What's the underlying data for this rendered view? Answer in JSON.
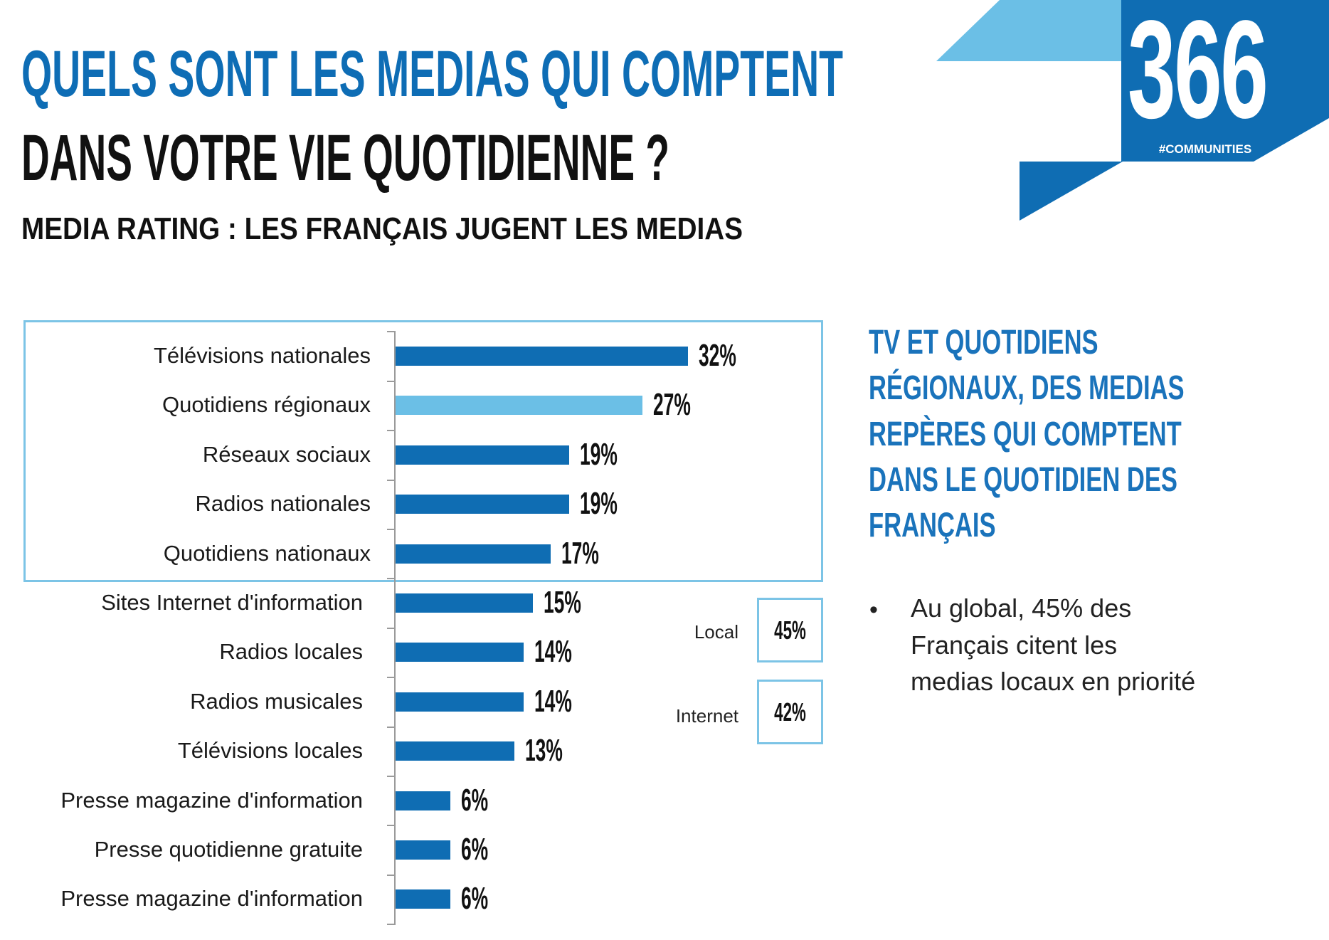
{
  "title": {
    "line1": "QUELS SONT LES MEDIAS QUI COMPTENT",
    "line2": "DANS VOTRE VIE QUOTIDIENNE ?",
    "subtitle": "MEDIA RATING : LES FRANÇAIS JUGENT LES MEDIAS"
  },
  "logo": {
    "number": "366",
    "tag": "#COMMUNITIES"
  },
  "colors": {
    "primary": "#0f6db3",
    "highlight": "#6bbfe6",
    "box_border": "#7cc4e6",
    "title_blue": "#0e6db5"
  },
  "chart_data": {
    "type": "bar",
    "orientation": "horizontal",
    "categories": [
      "Télévisions nationales",
      "Quotidiens régionaux",
      "Réseaux sociaux",
      "Radios nationales",
      "Quotidiens nationaux",
      "Sites Internet d'information",
      "Radios locales",
      "Radios musicales",
      "Télévisions locales",
      "Presse magazine d'information",
      "Presse quotidienne gratuite",
      "Presse magazine d'information"
    ],
    "values": [
      32,
      27,
      19,
      19,
      17,
      15,
      14,
      14,
      13,
      6,
      6,
      6
    ],
    "value_labels": [
      "32%",
      "27%",
      "19%",
      "19%",
      "17%",
      "15%",
      "14%",
      "14%",
      "13%",
      "6%",
      "6%",
      "6%"
    ],
    "highlighted_category": "Quotidiens régionaux",
    "boxed_top_n": 5,
    "unit": "%",
    "grid": false
  },
  "summary": [
    {
      "label": "Local",
      "value": "45%"
    },
    {
      "label": "Internet",
      "value": "42%"
    }
  ],
  "side": {
    "heading_lines": [
      "TV ET QUOTIDIENS",
      "RÉGIONAUX, DES MEDIAS",
      "REPÈRES QUI COMPTENT",
      "DANS LE QUOTIDIEN DES",
      "FRANÇAIS"
    ],
    "bullet_symbol": "•",
    "bullet_lines": [
      "Au global, 45% des",
      "Français citent les",
      "medias locaux en priorité"
    ]
  }
}
